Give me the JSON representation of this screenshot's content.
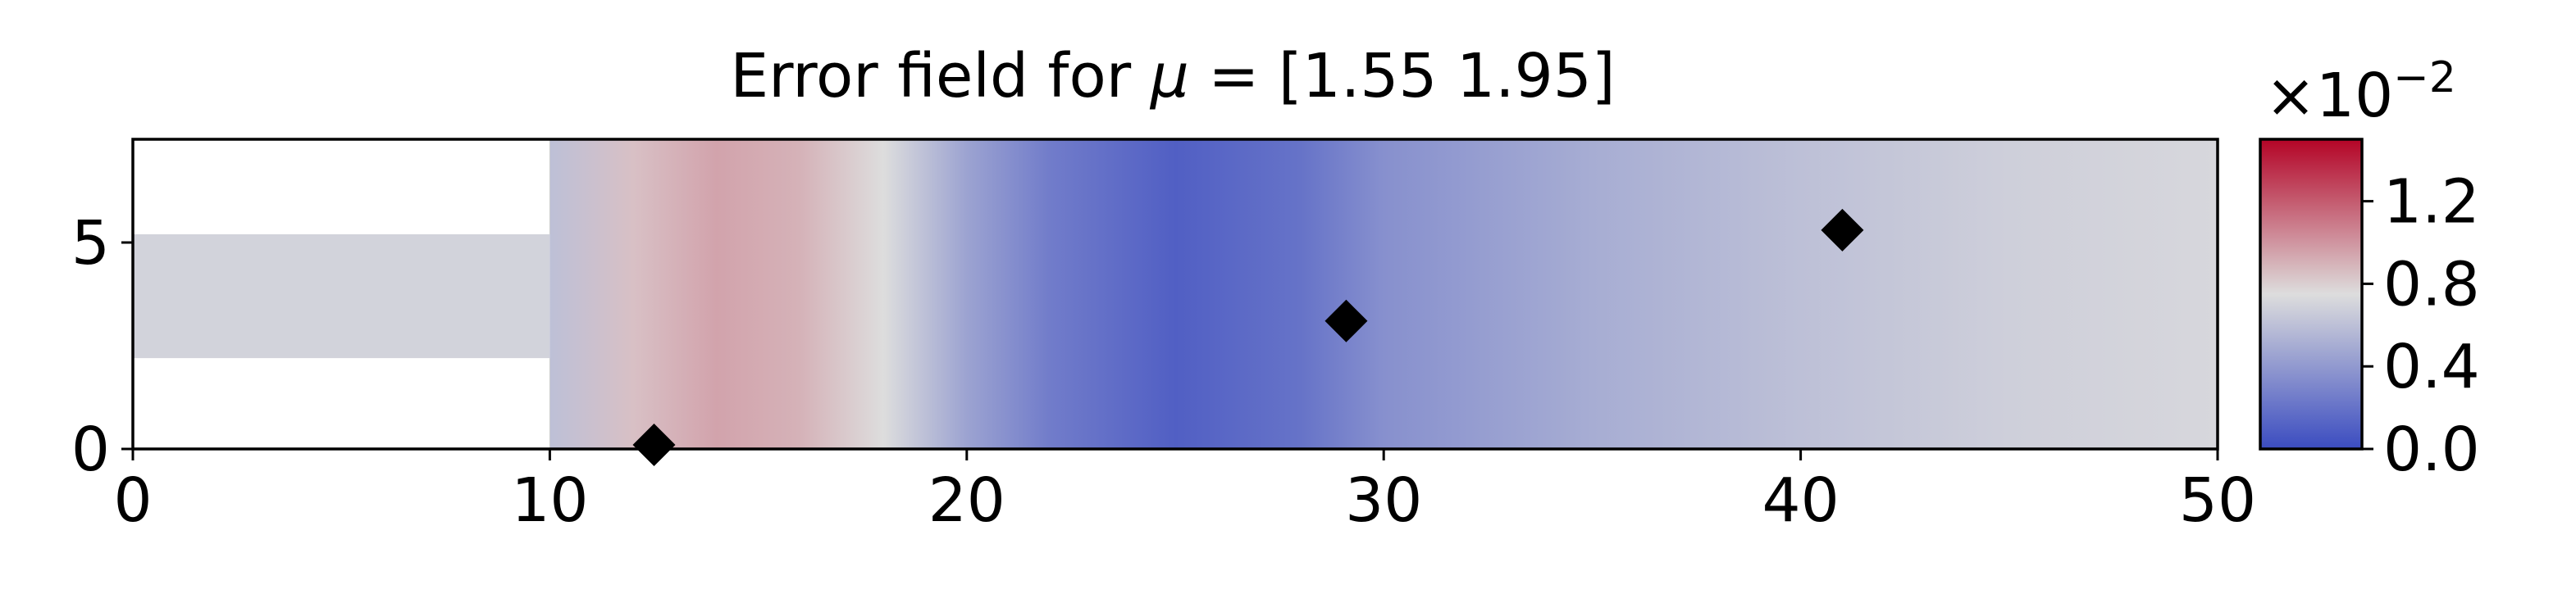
{
  "chart_data": {
    "type": "heatmap",
    "title_prefix": "Error field for ",
    "title_symbol": "μ",
    "title_suffix": " = [1.55 1.95]",
    "xlim": [
      0,
      50
    ],
    "ylim": [
      0,
      7.5
    ],
    "xticks": [
      0,
      10,
      20,
      30,
      40,
      50
    ],
    "xtick_labels": [
      "0",
      "10",
      "20",
      "30",
      "40",
      "50"
    ],
    "yticks": [
      0,
      5
    ],
    "ytick_labels": [
      "0",
      "5"
    ],
    "domain": {
      "inlet_channel": {
        "x": [
          0,
          10
        ],
        "y": [
          2.2,
          5.2
        ]
      },
      "main_channel": {
        "x": [
          10,
          50
        ],
        "y": [
          0,
          7.5
        ]
      }
    },
    "sensors": [
      {
        "x": 12.5,
        "y": 0.1
      },
      {
        "x": 29.1,
        "y": 3.1
      },
      {
        "x": 41.0,
        "y": 5.3
      }
    ],
    "field_profile_x": [
      10,
      12,
      14,
      16,
      18,
      20,
      22,
      25,
      28,
      30,
      35,
      40,
      45,
      50
    ],
    "field_profile_values": [
      0.6,
      0.85,
      0.95,
      0.9,
      0.75,
      0.45,
      0.25,
      0.1,
      0.2,
      0.35,
      0.5,
      0.6,
      0.68,
      0.72
    ],
    "inlet_mean_value": 0.7,
    "colorbar": {
      "colormap": "coolwarm",
      "range": [
        0.0,
        1.5
      ],
      "ticks": [
        0.0,
        0.4,
        0.8,
        1.2
      ],
      "tick_labels": [
        "0.0",
        "0.4",
        "0.8",
        "1.2"
      ],
      "scale_base": "×10",
      "scale_exponent": "−2"
    },
    "colors": {
      "cold": "#3b4cc0",
      "neutral": "#dddddd",
      "warm": "#b40426",
      "marker": "#000000"
    }
  }
}
